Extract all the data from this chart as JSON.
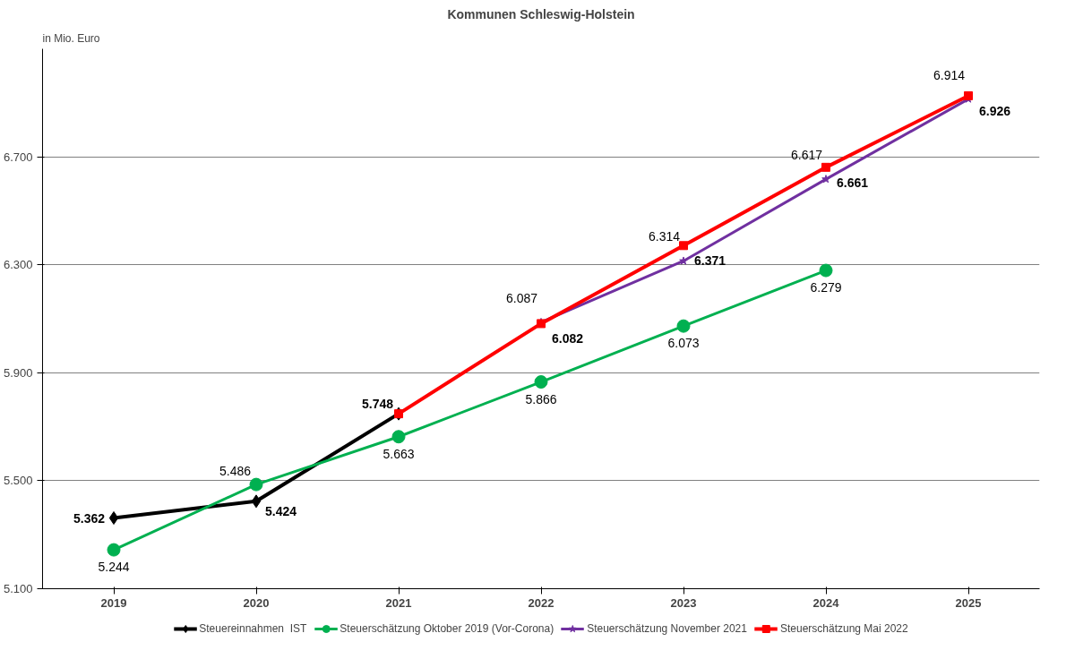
{
  "chart_data": {
    "type": "line",
    "title": "Kommunen Schleswig-Holstein",
    "ylabel": "in Mio. Euro",
    "categories": [
      "2019",
      "2020",
      "2021",
      "2022",
      "2023",
      "2024",
      "2025"
    ],
    "ylim": [
      5100,
      7100
    ],
    "yticks": [
      {
        "value": 5100,
        "label": "5.100"
      },
      {
        "value": 5500,
        "label": "5.500"
      },
      {
        "value": 5900,
        "label": "5.900"
      },
      {
        "value": 6300,
        "label": "6.300"
      },
      {
        "value": 6700,
        "label": "6.700"
      }
    ],
    "grid": "y",
    "legend": "bottom",
    "series": [
      {
        "name": "Steuereinnahmen  IST",
        "color": "#000000",
        "marker": "diamond",
        "values": [
          5362,
          5424,
          5748,
          null,
          null,
          null,
          null
        ],
        "value_labels": [
          "5.362",
          "5.424",
          "5.748",
          null,
          null,
          null,
          null
        ]
      },
      {
        "name": "Steuerschätzung Oktober 2019 (Vor-Corona)",
        "color": "#00b050",
        "marker": "circle",
        "values": [
          5244,
          5486,
          5663,
          5866,
          6073,
          6279,
          null
        ],
        "value_labels": [
          "5.244",
          "5.486",
          "5.663",
          "5.866",
          "6.073",
          "6.279",
          null
        ]
      },
      {
        "name": "Steuerschätzung November 2021",
        "color": "#7030a0",
        "marker": "star",
        "values": [
          null,
          null,
          null,
          6087,
          6314,
          6617,
          6914
        ],
        "value_labels": [
          null,
          null,
          null,
          "6.087",
          "6.314",
          "6.617",
          "6.914"
        ]
      },
      {
        "name": "Steuerschätzung Mai 2022",
        "color": "#ff0000",
        "marker": "square",
        "values": [
          null,
          null,
          5748,
          6082,
          6371,
          6661,
          6926
        ],
        "value_labels": [
          null,
          null,
          null,
          "6.082",
          "6.371",
          "6.661",
          "6.926"
        ]
      }
    ]
  }
}
